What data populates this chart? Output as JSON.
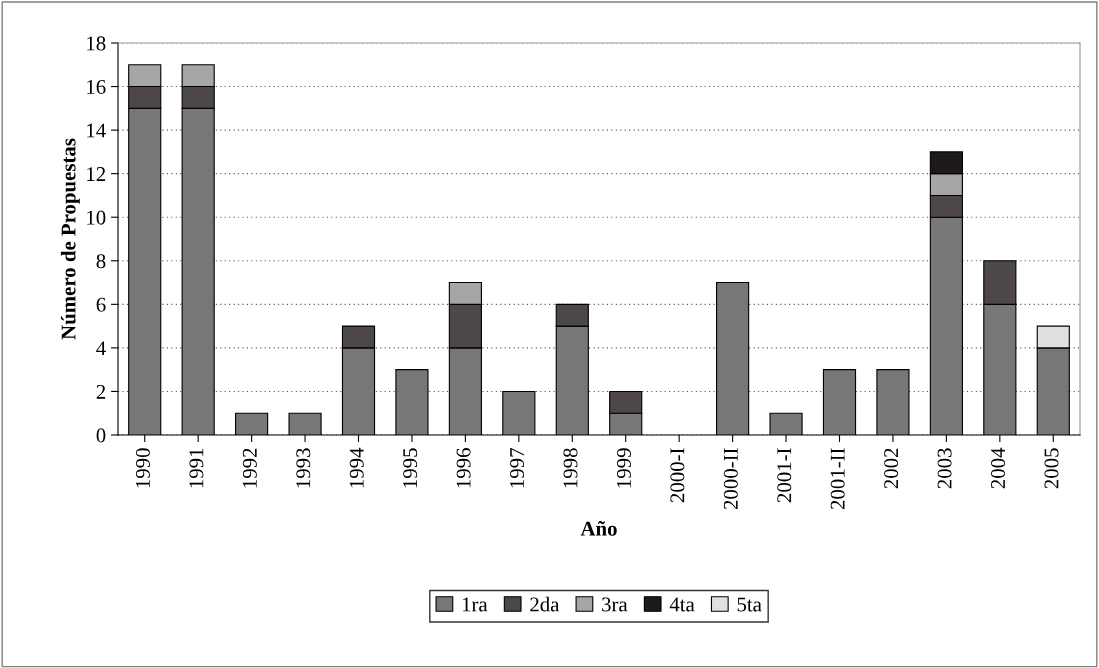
{
  "chart_data": {
    "type": "bar",
    "stacked": true,
    "xlabel": "Año",
    "ylabel": "Número de Propuestas",
    "categories": [
      "1990",
      "1991",
      "1992",
      "1993",
      "1994",
      "1995",
      "1996",
      "1997",
      "1998",
      "1999",
      "2000-I",
      "2000-II",
      "2001-I",
      "2001-II",
      "2002",
      "2003",
      "2004",
      "2005"
    ],
    "series": [
      {
        "name": "1ra",
        "color": "#777777",
        "values": [
          15,
          15,
          1,
          1,
          4,
          3,
          4,
          2,
          5,
          1,
          0,
          7,
          1,
          3,
          3,
          10,
          6,
          4
        ]
      },
      {
        "name": "2da",
        "color": "#4d4747",
        "values": [
          1,
          1,
          0,
          0,
          1,
          0,
          2,
          0,
          1,
          1,
          0,
          0,
          0,
          0,
          0,
          1,
          2,
          0
        ]
      },
      {
        "name": "3ra",
        "color": "#a6a6a6",
        "values": [
          1,
          1,
          0,
          0,
          0,
          0,
          1,
          0,
          0,
          0,
          0,
          0,
          0,
          0,
          0,
          1,
          0,
          0
        ]
      },
      {
        "name": "4ta",
        "color": "#1e1a1a",
        "values": [
          0,
          0,
          0,
          0,
          0,
          0,
          0,
          0,
          0,
          0,
          0,
          0,
          0,
          0,
          0,
          1,
          0,
          0
        ]
      },
      {
        "name": "5ta",
        "color": "#e0e0e0",
        "values": [
          0,
          0,
          0,
          0,
          0,
          0,
          0,
          0,
          0,
          0,
          0,
          0,
          0,
          0,
          0,
          0,
          0,
          1
        ]
      }
    ],
    "ylim": [
      0,
      18
    ],
    "yticks": [
      0,
      2,
      4,
      6,
      8,
      10,
      12,
      14,
      16,
      18
    ],
    "grid": "y",
    "legend": "bottom"
  }
}
